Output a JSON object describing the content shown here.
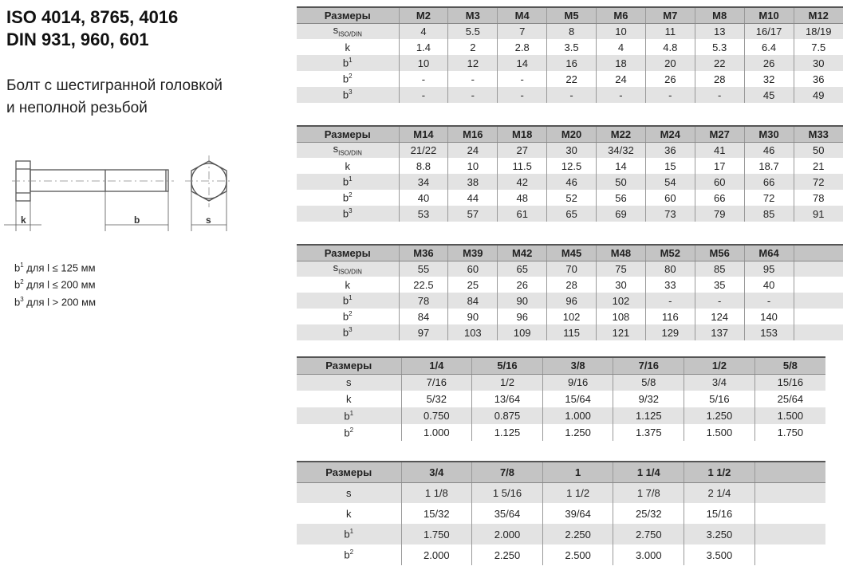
{
  "title": {
    "line1": "ISO 4014, 8765, 4016",
    "line2": "DIN 931, 960, 601"
  },
  "subtitle": {
    "line1": "Болт с шестигранной головкой",
    "line2": "и неполной резьбой"
  },
  "drawing": {
    "k": "k",
    "b": "b",
    "s": "s"
  },
  "notes": [
    {
      "sup": "1",
      "text": " для l ≤ 125 мм"
    },
    {
      "sup": "2",
      "text": " для l ≤ 200 мм"
    },
    {
      "sup": "3",
      "text": " для l > 200 мм"
    }
  ],
  "tables": [
    {
      "header": [
        "Размеры",
        "M2",
        "M3",
        "M4",
        "M5",
        "M6",
        "M7",
        "M8",
        "M10",
        "M12"
      ],
      "rows": [
        {
          "label": "s",
          "sub": "ISO/DIN",
          "values": [
            "4",
            "5.5",
            "7",
            "8",
            "10",
            "11",
            "13",
            "16/17",
            "18/19"
          ]
        },
        {
          "label": "k",
          "values": [
            "1.4",
            "2",
            "2.8",
            "3.5",
            "4",
            "4.8",
            "5.3",
            "6.4",
            "7.5"
          ]
        },
        {
          "label": "b",
          "sup": "1",
          "values": [
            "10",
            "12",
            "14",
            "16",
            "18",
            "20",
            "22",
            "26",
            "30"
          ]
        },
        {
          "label": "b",
          "sup": "2",
          "values": [
            "-",
            "-",
            "-",
            "22",
            "24",
            "26",
            "28",
            "32",
            "36"
          ]
        },
        {
          "label": "b",
          "sup": "3",
          "values": [
            "-",
            "-",
            "-",
            "-",
            "-",
            "-",
            "-",
            "45",
            "49"
          ]
        }
      ]
    },
    {
      "header": [
        "Размеры",
        "M14",
        "M16",
        "M18",
        "M20",
        "M22",
        "M24",
        "M27",
        "M30",
        "M33"
      ],
      "rows": [
        {
          "label": "s",
          "sub": "ISO/DIN",
          "values": [
            "21/22",
            "24",
            "27",
            "30",
            "34/32",
            "36",
            "41",
            "46",
            "50"
          ]
        },
        {
          "label": "k",
          "values": [
            "8.8",
            "10",
            "11.5",
            "12.5",
            "14",
            "15",
            "17",
            "18.7",
            "21"
          ]
        },
        {
          "label": "b",
          "sup": "1",
          "values": [
            "34",
            "38",
            "42",
            "46",
            "50",
            "54",
            "60",
            "66",
            "72"
          ]
        },
        {
          "label": "b",
          "sup": "2",
          "values": [
            "40",
            "44",
            "48",
            "52",
            "56",
            "60",
            "66",
            "72",
            "78"
          ]
        },
        {
          "label": "b",
          "sup": "3",
          "values": [
            "53",
            "57",
            "61",
            "65",
            "69",
            "73",
            "79",
            "85",
            "91"
          ]
        }
      ]
    },
    {
      "header": [
        "Размеры",
        "M36",
        "M39",
        "M42",
        "M45",
        "M48",
        "M52",
        "M56",
        "M64",
        ""
      ],
      "rows": [
        {
          "label": "s",
          "sub": "ISO/DIN",
          "values": [
            "55",
            "60",
            "65",
            "70",
            "75",
            "80",
            "85",
            "95",
            ""
          ]
        },
        {
          "label": "k",
          "values": [
            "22.5",
            "25",
            "26",
            "28",
            "30",
            "33",
            "35",
            "40",
            ""
          ]
        },
        {
          "label": "b",
          "sup": "1",
          "values": [
            "78",
            "84",
            "90",
            "96",
            "102",
            "-",
            "-",
            "-",
            ""
          ]
        },
        {
          "label": "b",
          "sup": "2",
          "values": [
            "84",
            "90",
            "96",
            "102",
            "108",
            "116",
            "124",
            "140",
            ""
          ]
        },
        {
          "label": "b",
          "sup": "3",
          "values": [
            "97",
            "103",
            "109",
            "115",
            "121",
            "129",
            "137",
            "153",
            ""
          ]
        }
      ]
    },
    {
      "header": [
        "Размеры",
        "1/4",
        "5/16",
        "3/8",
        "7/16",
        "1/2",
        "5/8"
      ],
      "rows": [
        {
          "label": "s",
          "values": [
            "7/16",
            "1/2",
            "9/16",
            "5/8",
            "3/4",
            "15/16"
          ]
        },
        {
          "label": "k",
          "values": [
            "5/32",
            "13/64",
            "15/64",
            "9/32",
            "5/16",
            "25/64"
          ]
        },
        {
          "label": "b",
          "sup": "1",
          "values": [
            "0.750",
            "0.875",
            "1.000",
            "1.125",
            "1.250",
            "1.500"
          ]
        },
        {
          "label": "b",
          "sup": "2",
          "values": [
            "1.000",
            "1.125",
            "1.250",
            "1.375",
            "1.500",
            "1.750"
          ]
        }
      ]
    },
    {
      "header": [
        "Размеры",
        "3/4",
        "7/8",
        "1",
        "1 1/4",
        "1 1/2",
        ""
      ],
      "rows": [
        {
          "label": "s",
          "values": [
            "1 1/8",
            "1 5/16",
            "1 1/2",
            "1 7/8",
            "2 1/4",
            ""
          ]
        },
        {
          "label": "k",
          "values": [
            "15/32",
            "35/64",
            "39/64",
            "25/32",
            "15/16",
            ""
          ]
        },
        {
          "label": "b",
          "sup": "1",
          "values": [
            "1.750",
            "2.000",
            "2.250",
            "2.750",
            "3.250",
            ""
          ]
        },
        {
          "label": "b",
          "sup": "2",
          "values": [
            "2.000",
            "2.250",
            "2.500",
            "3.000",
            "3.500",
            ""
          ]
        }
      ]
    }
  ]
}
